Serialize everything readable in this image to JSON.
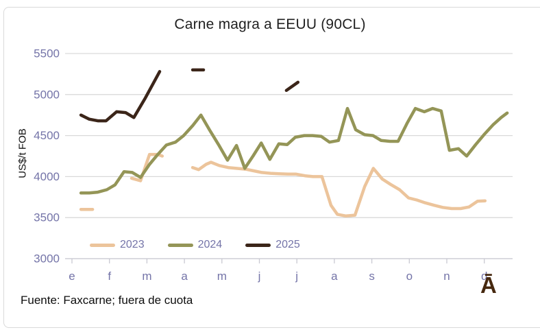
{
  "title": "Carne magra a EEUU (90CL)",
  "y_axis_title": "US$/t FOB",
  "source_note": "Fuente: Faxcarne; fuera de cuota",
  "watermark": "Ā",
  "colors": {
    "axis_text": "#7474a8",
    "gridline": "#d9d9d9",
    "axis_line": "#c9c9d2",
    "title_text": "#1f1f1f",
    "series_2023": "#ecc49b",
    "series_2024": "#949557",
    "series_2025": "#3b2519",
    "watermark": "#46280f",
    "frame_border": "#d9d9d9",
    "background": "#ffffff"
  },
  "chart_data": {
    "type": "line",
    "title": "Carne magra a EEUU (90CL)",
    "ylabel": "US$/t FOB",
    "xlabel": "",
    "ylim": [
      3000,
      5500
    ],
    "yticks": [
      3000,
      3500,
      4000,
      4500,
      5000,
      5500
    ],
    "x_categories": [
      "e",
      "f",
      "m",
      "a",
      "m",
      "j",
      "j",
      "a",
      "s",
      "o",
      "n",
      "d"
    ],
    "x_scale_note": "weekly points; x in month units where 0=e(enero) tick and 11=d(diciembre) tick; gaps = missing data",
    "grid": true,
    "legend_position": "inside-bottom-left",
    "series": [
      {
        "name": "2023",
        "color": "#ecc49b",
        "segments": [
          [
            [
              0.24,
              3600
            ],
            [
              0.55,
              3600
            ]
          ],
          [
            [
              1.59,
              3980
            ],
            [
              1.83,
              3950
            ],
            [
              2.07,
              4270
            ],
            [
              2.29,
              4270
            ],
            [
              2.41,
              4250
            ]
          ],
          [
            [
              3.22,
              4110
            ],
            [
              3.38,
              4085
            ],
            [
              3.58,
              4150
            ],
            [
              3.71,
              4175
            ],
            [
              3.93,
              4135
            ],
            [
              4.17,
              4110
            ],
            [
              4.39,
              4100
            ],
            [
              4.63,
              4090
            ],
            [
              4.85,
              4070
            ],
            [
              5.06,
              4050
            ],
            [
              5.3,
              4040
            ],
            [
              5.52,
              4035
            ],
            [
              5.76,
              4030
            ],
            [
              5.98,
              4030
            ],
            [
              6.22,
              4010
            ],
            [
              6.43,
              4000
            ],
            [
              6.67,
              4000
            ],
            [
              6.91,
              3650
            ],
            [
              7.08,
              3540
            ],
            [
              7.31,
              3520
            ],
            [
              7.55,
              3530
            ],
            [
              7.81,
              3880
            ],
            [
              8.04,
              4100
            ],
            [
              8.28,
              3970
            ],
            [
              8.5,
              3905
            ],
            [
              8.74,
              3840
            ],
            [
              8.98,
              3740
            ],
            [
              9.2,
              3715
            ],
            [
              9.43,
              3680
            ],
            [
              9.67,
              3650
            ],
            [
              9.89,
              3625
            ],
            [
              10.13,
              3610
            ],
            [
              10.37,
              3610
            ],
            [
              10.59,
              3630
            ],
            [
              10.82,
              3700
            ],
            [
              11.02,
              3705
            ]
          ]
        ]
      },
      {
        "name": "2024",
        "color": "#949557",
        "segments": [
          [
            [
              0.24,
              3800
            ],
            [
              0.46,
              3800
            ],
            [
              0.69,
              3810
            ],
            [
              0.93,
              3840
            ],
            [
              1.15,
              3900
            ],
            [
              1.39,
              4060
            ],
            [
              1.61,
              4050
            ],
            [
              1.83,
              3990
            ],
            [
              2.07,
              4150
            ],
            [
              2.29,
              4270
            ],
            [
              2.52,
              4385
            ],
            [
              2.76,
              4420
            ],
            [
              2.98,
              4500
            ],
            [
              3.22,
              4620
            ],
            [
              3.44,
              4750
            ],
            [
              3.67,
              4570
            ],
            [
              3.91,
              4390
            ],
            [
              4.15,
              4200
            ],
            [
              4.39,
              4380
            ],
            [
              4.61,
              4100
            ],
            [
              4.83,
              4250
            ],
            [
              5.05,
              4410
            ],
            [
              5.28,
              4210
            ],
            [
              5.52,
              4400
            ],
            [
              5.74,
              4390
            ],
            [
              5.96,
              4480
            ],
            [
              6.2,
              4500
            ],
            [
              6.42,
              4500
            ],
            [
              6.65,
              4490
            ],
            [
              6.87,
              4420
            ],
            [
              7.11,
              4440
            ],
            [
              7.35,
              4830
            ],
            [
              7.57,
              4570
            ],
            [
              7.81,
              4510
            ],
            [
              8.03,
              4500
            ],
            [
              8.25,
              4440
            ],
            [
              8.48,
              4430
            ],
            [
              8.7,
              4430
            ],
            [
              8.94,
              4650
            ],
            [
              9.16,
              4830
            ],
            [
              9.4,
              4790
            ],
            [
              9.62,
              4830
            ],
            [
              9.85,
              4800
            ],
            [
              10.07,
              4320
            ],
            [
              10.31,
              4340
            ],
            [
              10.53,
              4250
            ],
            [
              10.77,
              4390
            ],
            [
              10.99,
              4510
            ],
            [
              11.23,
              4630
            ],
            [
              11.45,
              4720
            ],
            [
              11.61,
              4775
            ]
          ]
        ]
      },
      {
        "name": "2025",
        "color": "#3b2519",
        "segments": [
          [
            [
              0.24,
              4750
            ],
            [
              0.46,
              4700
            ],
            [
              0.69,
              4680
            ],
            [
              0.91,
              4680
            ],
            [
              1.19,
              4790
            ],
            [
              1.43,
              4780
            ],
            [
              1.65,
              4720
            ],
            [
              1.96,
              4960
            ],
            [
              2.34,
              5280
            ]
          ],
          [
            [
              3.22,
              5300
            ],
            [
              3.51,
              5300
            ]
          ],
          [
            [
              5.72,
              5050
            ],
            [
              6.03,
              5150
            ]
          ]
        ]
      }
    ]
  }
}
